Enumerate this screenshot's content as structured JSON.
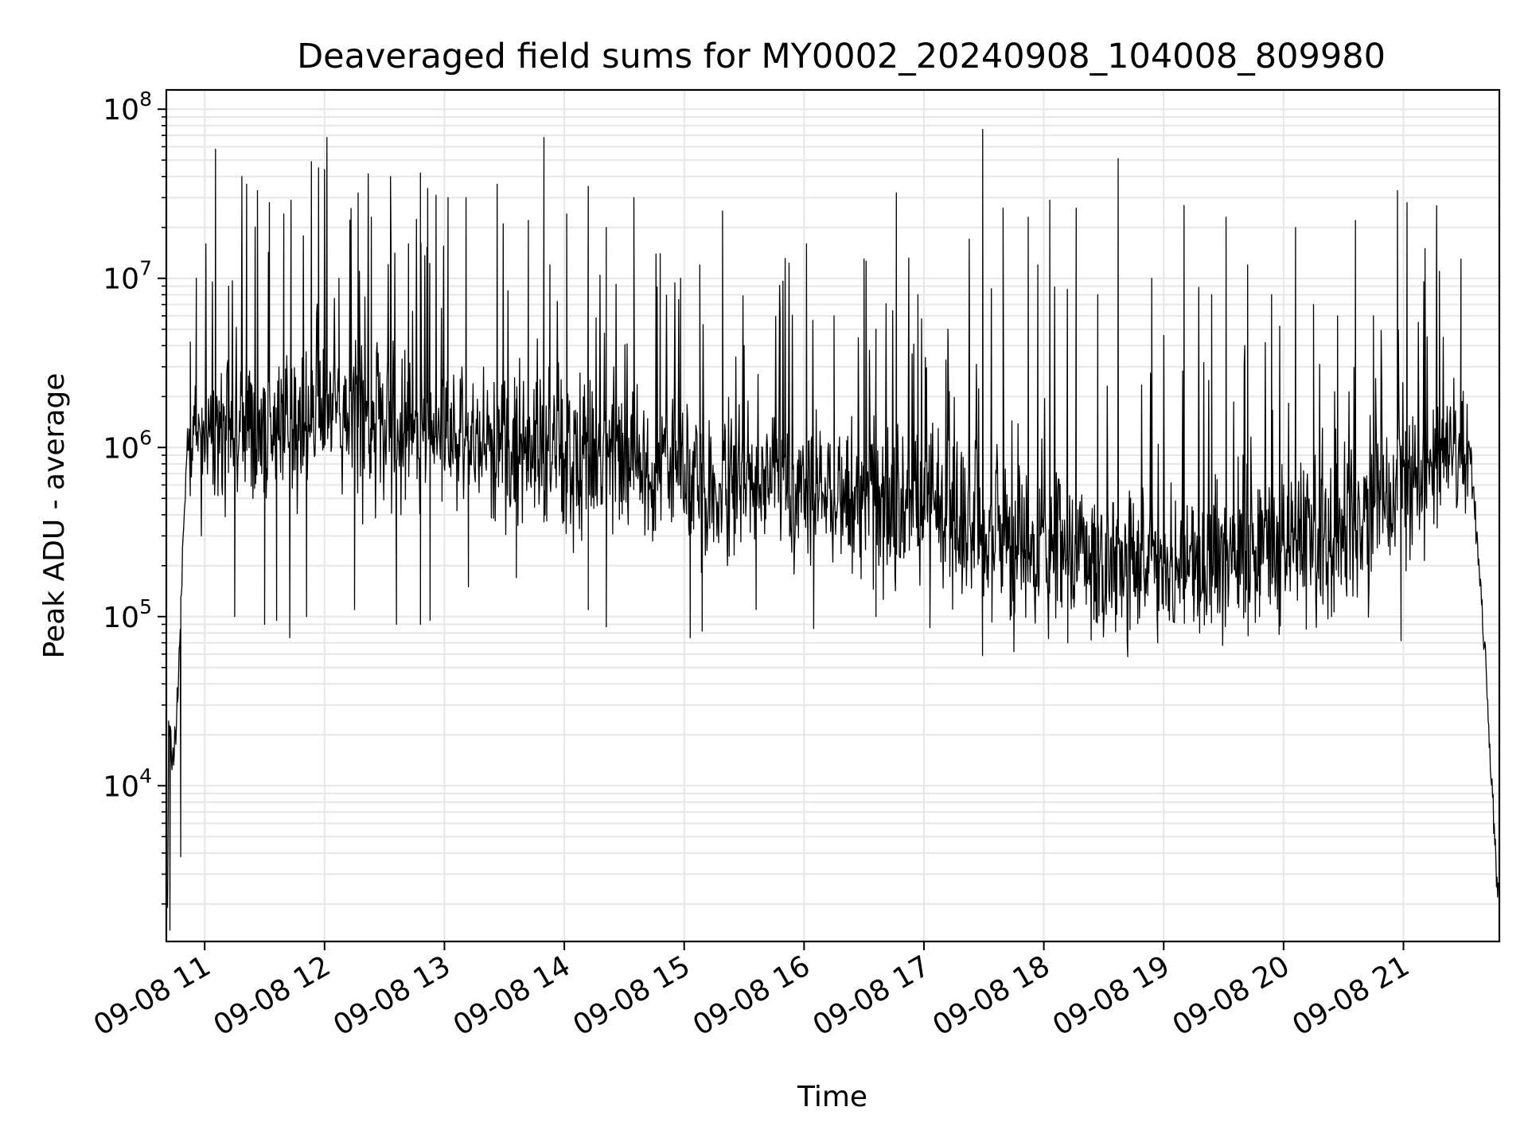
{
  "chart_data": {
    "type": "line",
    "title": "Deaveraged field sums for MY0002_20240908_104008_809980",
    "xlabel": "Time",
    "ylabel": "Peak ADU - average",
    "yscale": "log",
    "x_unit": "hour of 2024-09-08",
    "xlim": [
      10.68,
      21.8
    ],
    "ylim": [
      1200,
      130000000
    ],
    "grid": "major and minor on both axes",
    "line_color": "#000000",
    "grid_color": "#e6e6e6",
    "x_ticks": [
      {
        "value": 11,
        "label": "09-08 11"
      },
      {
        "value": 12,
        "label": "09-08 12"
      },
      {
        "value": 13,
        "label": "09-08 13"
      },
      {
        "value": 14,
        "label": "09-08 14"
      },
      {
        "value": 15,
        "label": "09-08 15"
      },
      {
        "value": 16,
        "label": "09-08 16"
      },
      {
        "value": 17,
        "label": "09-08 17"
      },
      {
        "value": 18,
        "label": "09-08 18"
      },
      {
        "value": 19,
        "label": "09-08 19"
      },
      {
        "value": 20,
        "label": "09-08 20"
      },
      {
        "value": 21,
        "label": "09-08 21"
      }
    ],
    "y_ticks": [
      {
        "value": 10000,
        "base": "10",
        "exp": "4"
      },
      {
        "value": 100000,
        "base": "10",
        "exp": "5"
      },
      {
        "value": 1000000,
        "base": "10",
        "exp": "6"
      },
      {
        "value": 10000000,
        "base": "10",
        "exp": "7"
      },
      {
        "value": 100000000,
        "base": "10",
        "exp": "8"
      }
    ],
    "series": [
      {
        "baseline_shape": [
          [
            10.69,
            1500
          ],
          [
            10.7,
            25000
          ],
          [
            10.73,
            15000
          ],
          [
            10.76,
            20000
          ],
          [
            10.8,
            100000
          ],
          [
            10.85,
            900000
          ],
          [
            10.95,
            1200000
          ],
          [
            11.1,
            1300000
          ],
          [
            11.5,
            1400000
          ],
          [
            12.0,
            1500000
          ],
          [
            12.5,
            1400000
          ],
          [
            13.0,
            1200000
          ],
          [
            13.5,
            1000000
          ],
          [
            14.0,
            900000
          ],
          [
            14.5,
            800000
          ],
          [
            15.0,
            700000
          ],
          [
            15.5,
            650000
          ],
          [
            16.0,
            550000
          ],
          [
            16.5,
            480000
          ],
          [
            17.0,
            420000
          ],
          [
            17.5,
            320000
          ],
          [
            18.0,
            250000
          ],
          [
            18.5,
            210000
          ],
          [
            19.0,
            200000
          ],
          [
            19.5,
            230000
          ],
          [
            20.0,
            260000
          ],
          [
            20.5,
            320000
          ],
          [
            21.0,
            500000
          ],
          [
            21.3,
            800000
          ],
          [
            21.55,
            1000000
          ],
          [
            21.62,
            250000
          ],
          [
            21.68,
            60000
          ],
          [
            21.73,
            12000
          ],
          [
            21.79,
            2000
          ]
        ],
        "spikes": [
          [
            10.77,
            38000
          ],
          [
            10.8,
            3800
          ],
          [
            10.88,
            4200000
          ],
          [
            10.93,
            10000000
          ],
          [
            11.01,
            16000000
          ],
          [
            11.09,
            58000000
          ],
          [
            11.2,
            9000000
          ],
          [
            11.31,
            40000000
          ],
          [
            11.35,
            36000000
          ],
          [
            11.44,
            33000000
          ],
          [
            11.54,
            28000000
          ],
          [
            11.66,
            24000000
          ],
          [
            11.72,
            29000000
          ],
          [
            11.89,
            49000000
          ],
          [
            11.95,
            45000000
          ],
          [
            12.0,
            44000000
          ],
          [
            12.02,
            68000000
          ],
          [
            12.12,
            10000000
          ],
          [
            12.28,
            32000000
          ],
          [
            12.39,
            23000000
          ],
          [
            12.55,
            40000000
          ],
          [
            12.7,
            16000000
          ],
          [
            12.8,
            42000000
          ],
          [
            12.86,
            34000000
          ],
          [
            12.93,
            31000000
          ],
          [
            13.03,
            30000000
          ],
          [
            13.18,
            30000000
          ],
          [
            13.44,
            36000000
          ],
          [
            13.49,
            21000000
          ],
          [
            13.7,
            22000000
          ],
          [
            13.83,
            68000000
          ],
          [
            13.88,
            12000000
          ],
          [
            14.02,
            24000000
          ],
          [
            14.2,
            35000000
          ],
          [
            14.35,
            20000000
          ],
          [
            14.58,
            30000000
          ],
          [
            14.8,
            14000000
          ],
          [
            14.97,
            10000000
          ],
          [
            15.13,
            12000000
          ],
          [
            15.32,
            25000000
          ],
          [
            15.5,
            4000000
          ],
          [
            15.8,
            6000000
          ],
          [
            16.02,
            16000000
          ],
          [
            16.25,
            6000000
          ],
          [
            16.5,
            13000000
          ],
          [
            16.6,
            5000000
          ],
          [
            16.77,
            32000000
          ],
          [
            16.95,
            8000000
          ],
          [
            17.2,
            5000000
          ],
          [
            17.49,
            76000000
          ],
          [
            17.66,
            26000000
          ],
          [
            17.87,
            23000000
          ],
          [
            17.95,
            12000000
          ],
          [
            18.05,
            29000000
          ],
          [
            18.27,
            26000000
          ],
          [
            18.45,
            8000000
          ],
          [
            18.62,
            51000000
          ],
          [
            18.9,
            10000000
          ],
          [
            19.17,
            27000000
          ],
          [
            19.4,
            8000000
          ],
          [
            19.52,
            23000000
          ],
          [
            19.7,
            12000000
          ],
          [
            19.9,
            8000000
          ],
          [
            20.1,
            20000000
          ],
          [
            20.25,
            7000000
          ],
          [
            20.45,
            6000000
          ],
          [
            20.6,
            22000000
          ],
          [
            20.75,
            6000000
          ],
          [
            20.95,
            33000000
          ],
          [
            21.03,
            28000000
          ],
          [
            21.18,
            15000000
          ],
          [
            21.3,
            11000000
          ],
          [
            21.48,
            13000000
          ]
        ],
        "dips": [
          [
            10.71,
            1400
          ],
          [
            10.8,
            3800
          ],
          [
            11.25,
            100000
          ],
          [
            11.5,
            90000
          ],
          [
            11.6,
            95000
          ],
          [
            11.71,
            75000
          ],
          [
            11.85,
            100000
          ],
          [
            12.25,
            110000
          ],
          [
            12.6,
            90000
          ],
          [
            12.8,
            90000
          ],
          [
            12.88,
            95000
          ],
          [
            13.2,
            150000
          ],
          [
            13.6,
            170000
          ],
          [
            14.2,
            110000
          ],
          [
            14.35,
            87000
          ],
          [
            15.05,
            75000
          ],
          [
            15.15,
            82000
          ],
          [
            15.6,
            110000
          ],
          [
            16.08,
            85000
          ],
          [
            16.6,
            100000
          ],
          [
            17.05,
            86000
          ],
          [
            17.75,
            62000
          ],
          [
            18.2,
            70000
          ],
          [
            18.7,
            58000
          ],
          [
            18.95,
            70000
          ],
          [
            19.3,
            80000
          ],
          [
            19.8,
            100000
          ],
          [
            20.4,
            100000
          ],
          [
            20.98,
            72000
          ]
        ]
      }
    ]
  }
}
